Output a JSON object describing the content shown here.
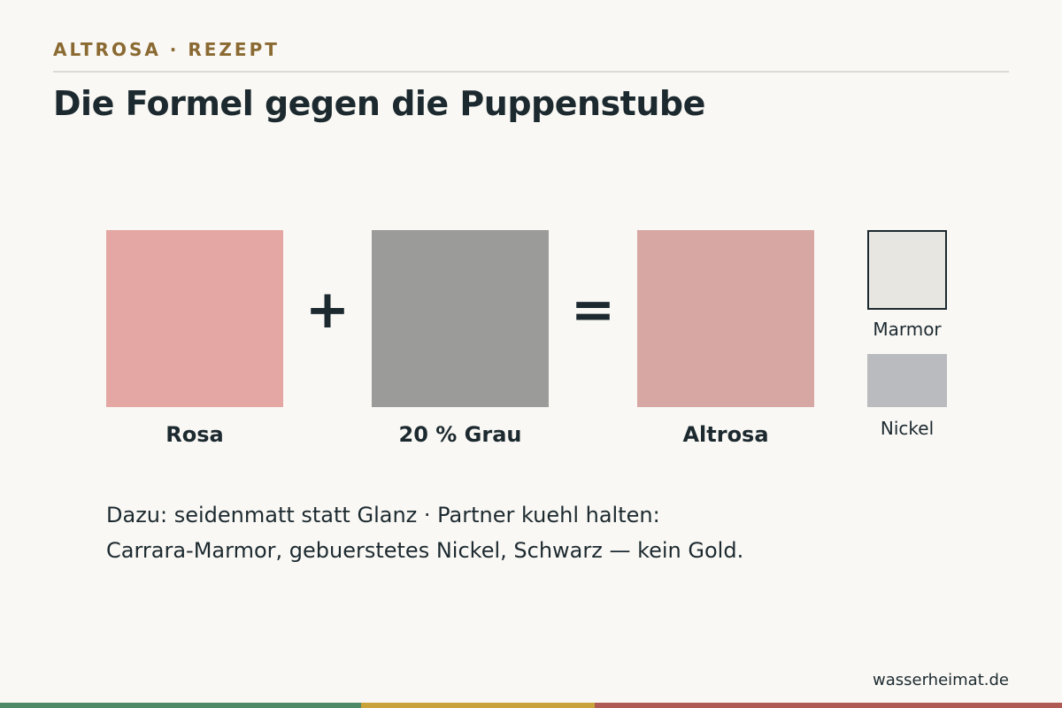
{
  "header": {
    "eyebrow": "ALTROSA · REZEPT",
    "title": "Die Formel gegen die Puppenstube"
  },
  "formula": {
    "plus": "+",
    "equals": "=",
    "swatches": [
      {
        "label": "Rosa",
        "color": "#e5a7a4"
      },
      {
        "label": "20 % Grau",
        "color": "#9b9b99"
      },
      {
        "label": "Altrosa",
        "color": "#d7a7a3"
      }
    ]
  },
  "partners": [
    {
      "label": "Marmor",
      "color": "#e7e6e1",
      "border": "#1c2a30"
    },
    {
      "label": "Nickel",
      "color": "#b9bbbe"
    }
  ],
  "note": {
    "line1": "Dazu: seidenmatt statt Glanz · Partner kuehl halten:",
    "line2": "Carrara-Marmor, gebuerstetes Nickel, Schwarz — kein Gold."
  },
  "footer": {
    "site": "wasserheimat.de"
  },
  "accent_stripe": [
    "#4e8a68",
    "#c9a33a",
    "#b05a54"
  ]
}
